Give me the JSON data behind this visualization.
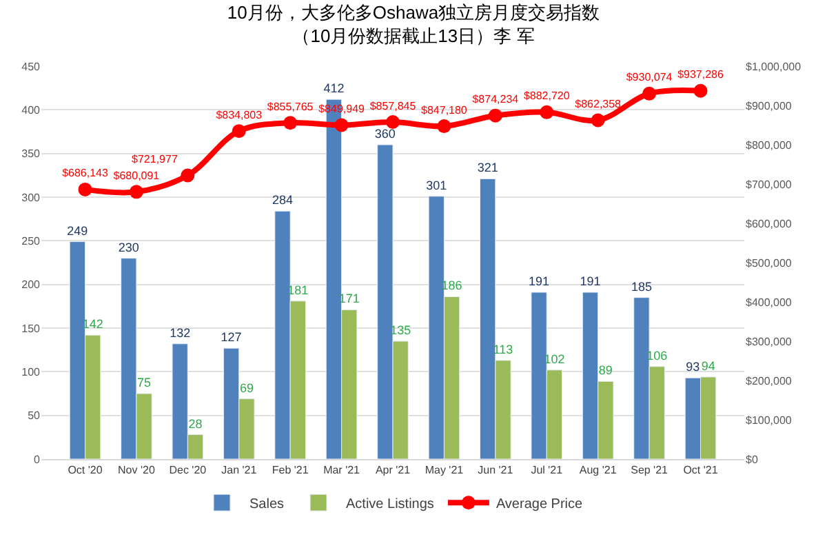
{
  "chart_data": {
    "type": "bar",
    "title": "10月份，大多伦多Oshawa独立房月度交易指数",
    "subtitle": "（10月份数据截止13日）李 军",
    "categories": [
      "Oct '20",
      "Nov '20",
      "Dec '20",
      "Jan '21",
      "Feb '21",
      "Mar '21",
      "Apr '21",
      "May '21",
      "Jun '21",
      "Jul '21",
      "Aug '21",
      "Sep '21",
      "Oct '21"
    ],
    "series": [
      {
        "name": "Sales",
        "color": "#4f81bd",
        "values": [
          249,
          230,
          132,
          127,
          284,
          412,
          360,
          301,
          321,
          191,
          191,
          185,
          93
        ]
      },
      {
        "name": "Active Listings",
        "color": "#9bbb59",
        "values": [
          142,
          75,
          28,
          69,
          181,
          171,
          135,
          186,
          113,
          102,
          89,
          106,
          94
        ]
      },
      {
        "name": "Average Price",
        "type": "line",
        "axis": "y2",
        "color": "#ff0000",
        "marker": "circle",
        "line_style": "solid",
        "values": [
          686143,
          680091,
          721977,
          834803,
          855765,
          849949,
          857845,
          847180,
          874234,
          882720,
          862358,
          930074,
          937286
        ],
        "value_labels": [
          "$686,143",
          "$680,091",
          "$721,977",
          "$834,803",
          "$855,765",
          "$849,949",
          "$857,845",
          "$847,180",
          "$874,234",
          "$882,720",
          "$862,358",
          "$930,074",
          "$937,286"
        ]
      }
    ],
    "data_labels": true,
    "ylim": [
      0,
      450
    ],
    "yticks": [
      0,
      50,
      100,
      150,
      200,
      250,
      300,
      350,
      400,
      450
    ],
    "y2lim": [
      0,
      1000000
    ],
    "y2ticks": [
      {
        "value": 0,
        "label": "$0"
      },
      {
        "value": 100000,
        "label": "$100,000"
      },
      {
        "value": 200000,
        "label": "$200,000"
      },
      {
        "value": 300000,
        "label": "$300,000"
      },
      {
        "value": 400000,
        "label": "$400,000"
      },
      {
        "value": 500000,
        "label": "$500,000"
      },
      {
        "value": 600000,
        "label": "$600,000"
      },
      {
        "value": 700000,
        "label": "$700,000"
      },
      {
        "value": 800000,
        "label": "$800,000"
      },
      {
        "value": 900000,
        "label": "$900,000"
      },
      {
        "value": 1000000,
        "label": "$1,000,000"
      }
    ],
    "grid": "y",
    "legend": "bottom"
  }
}
